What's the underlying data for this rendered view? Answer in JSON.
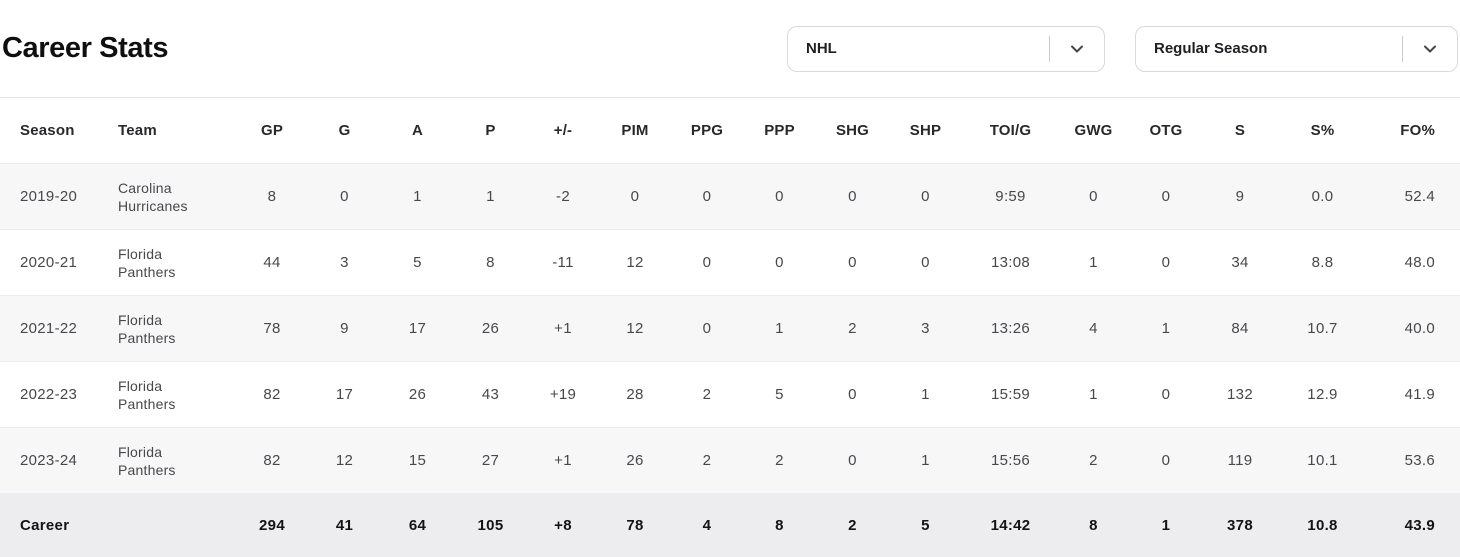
{
  "page": {
    "title": "Career Stats"
  },
  "filters": {
    "league": {
      "value": "NHL"
    },
    "season_type": {
      "value": "Regular Season"
    }
  },
  "icons": {
    "dropdown_chevron": "chevron-down"
  },
  "table": {
    "columns": [
      "Season",
      "Team",
      "GP",
      "G",
      "A",
      "P",
      "+/-",
      "PIM",
      "PPG",
      "PPP",
      "SHG",
      "SHP",
      "TOI/G",
      "GWG",
      "OTG",
      "S",
      "S%",
      "FO%"
    ],
    "rows": [
      {
        "season": "2019-20",
        "team": "Carolina Hurricanes",
        "stats": [
          "8",
          "0",
          "1",
          "1",
          "-2",
          "0",
          "0",
          "0",
          "0",
          "0",
          "9:59",
          "0",
          "0",
          "9",
          "0.0",
          "52.4"
        ]
      },
      {
        "season": "2020-21",
        "team": "Florida Panthers",
        "stats": [
          "44",
          "3",
          "5",
          "8",
          "-11",
          "12",
          "0",
          "0",
          "0",
          "0",
          "13:08",
          "1",
          "0",
          "34",
          "8.8",
          "48.0"
        ]
      },
      {
        "season": "2021-22",
        "team": "Florida Panthers",
        "stats": [
          "78",
          "9",
          "17",
          "26",
          "+1",
          "12",
          "0",
          "1",
          "2",
          "3",
          "13:26",
          "4",
          "1",
          "84",
          "10.7",
          "40.0"
        ]
      },
      {
        "season": "2022-23",
        "team": "Florida Panthers",
        "stats": [
          "82",
          "17",
          "26",
          "43",
          "+19",
          "28",
          "2",
          "5",
          "0",
          "1",
          "15:59",
          "1",
          "0",
          "132",
          "12.9",
          "41.9"
        ]
      },
      {
        "season": "2023-24",
        "team": "Florida Panthers",
        "stats": [
          "82",
          "12",
          "15",
          "27",
          "+1",
          "26",
          "2",
          "2",
          "0",
          "1",
          "15:56",
          "2",
          "0",
          "119",
          "10.1",
          "53.6"
        ]
      }
    ],
    "career": {
      "season": "Career",
      "team": "",
      "stats": [
        "294",
        "41",
        "64",
        "105",
        "+8",
        "78",
        "4",
        "8",
        "2",
        "5",
        "14:42",
        "8",
        "1",
        "378",
        "10.8",
        "43.9"
      ]
    }
  },
  "colors": {
    "stripe_bg": "#f7f7f8",
    "career_row_bg": "#ededef",
    "border": "#e3e3e6",
    "dropdown_border": "#d9d9de",
    "text_primary": "#0f0f12",
    "text_secondary": "#48484c"
  }
}
